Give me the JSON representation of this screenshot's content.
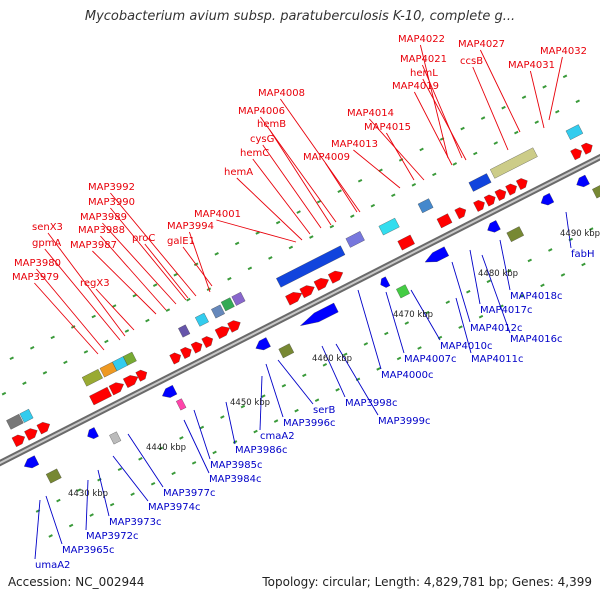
{
  "title": "Mycobacterium avium subsp. paratuberculosis K-10, complete g...",
  "footer": {
    "accession": "Accession: NC_002944",
    "topology": "Topology: circular; Length: 4,829,781 bp; Genes: 4,399"
  },
  "colors": {
    "forward_label": "#e8000a",
    "reverse_label": "#0000c8",
    "backbone": "#8a8a8a",
    "forward_gene": "#ff0000",
    "reverse_gene": "#0000ff"
  },
  "scale_ticks": [
    "4430 kbp",
    "4440 kbp",
    "4450 kbp",
    "4460 kbp",
    "4470 kbp",
    "4480 kbp",
    "4490 kbp"
  ],
  "forward_labels": [
    "MAP4022",
    "MAP4027",
    "MAP4032",
    "MAP4021",
    "ccsB",
    "hemL",
    "MAP4031",
    "MAP4019",
    "MAP4008",
    "MAP4006",
    "hemB",
    "MAP4014",
    "MAP4015",
    "cysG",
    "MAP4013",
    "hemC",
    "MAP4009",
    "hemA",
    "MAP3992",
    "MAP3990",
    "MAP3989",
    "MAP4001",
    "senX3",
    "MAP3988",
    "proC",
    "MAP3994",
    "gpmA",
    "MAP3987",
    "galE1",
    "MAP3980",
    "MAP3979",
    "regX3"
  ],
  "reverse_labels": [
    "MAP4000c",
    "serB",
    "MAP3998c",
    "MAP3999c",
    "MAP3996c",
    "cmaA2",
    "MAP3986c",
    "MAP3985c",
    "MAP3984c",
    "MAP3977c",
    "MAP3974c",
    "MAP3973c",
    "MAP3972c",
    "MAP3965c",
    "umaA2",
    "MAP4007c",
    "MAP4010c",
    "MAP4011c",
    "MAP4012c",
    "MAP4016c",
    "MAP4017c",
    "MAP4018c",
    "fabH"
  ]
}
